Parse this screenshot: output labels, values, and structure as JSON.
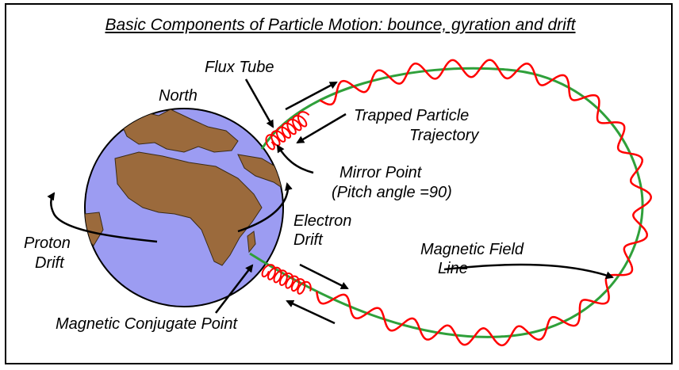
{
  "title": "Basic Components of Particle Motion: bounce, gyration and drift",
  "labels": {
    "north": "North",
    "flux_tube": "Flux Tube",
    "trapped_particle_line1": "Trapped Particle",
    "trapped_particle_line2": "Trajectory",
    "mirror_point_line1": "Mirror Point",
    "mirror_point_line2": "(Pitch angle =90)",
    "electron_drift_line1": "Electron",
    "electron_drift_line2": "Drift",
    "proton_drift_line1": "Proton",
    "proton_drift_line2": "Drift",
    "magnetic_field_line1": "Magnetic Field",
    "magnetic_field_line2": "Line",
    "conjugate_point": "Magnetic Conjugate Point"
  },
  "colors": {
    "ocean": "#9c9cf2",
    "land": "#9b6a3c",
    "field_line": "#2fa03a",
    "trajectory": "#ff0000",
    "arrows": "#000000"
  }
}
